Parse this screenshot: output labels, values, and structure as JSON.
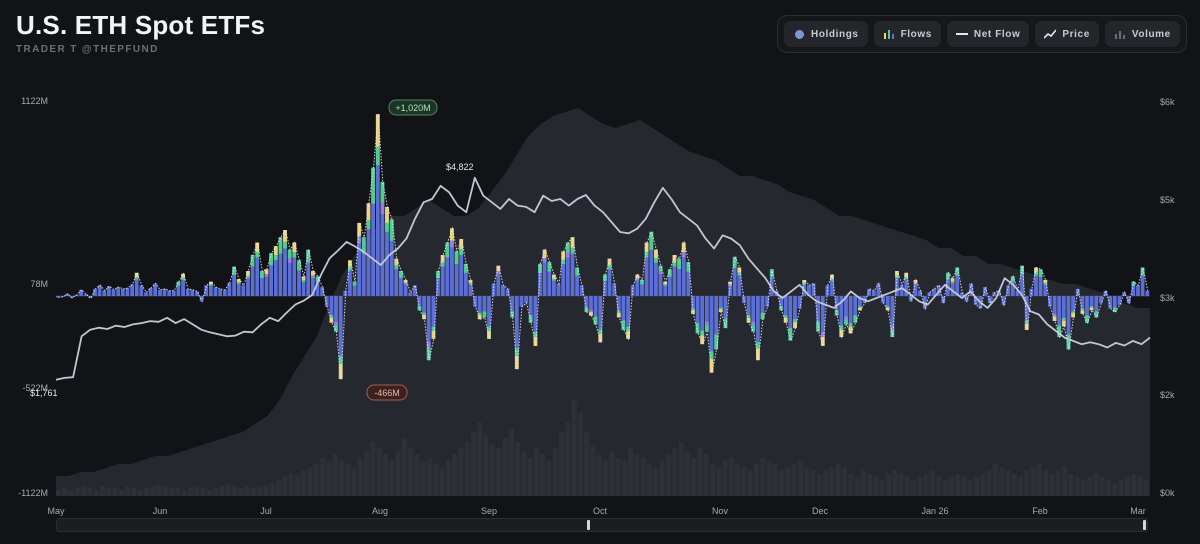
{
  "header": {
    "title": "U.S. ETH Spot ETFs",
    "subtitle": "TRADER T @THEPFUND"
  },
  "toolbar": {
    "buttons": [
      {
        "label": "Holdings",
        "icon": "holdings-dot-icon"
      },
      {
        "label": "Flows",
        "icon": "flows-bars-icon"
      },
      {
        "label": "Net Flow",
        "icon": "net-flow-line-icon"
      },
      {
        "label": "Price",
        "icon": "price-trend-icon"
      },
      {
        "label": "Volume",
        "icon": "volume-bars-icon"
      }
    ]
  },
  "colors": {
    "background": "#121316",
    "flow_primary": "#5b6fd6",
    "flow_green": "#4fcf8f",
    "flow_yellow": "#e8d27a",
    "flow_purple": "#9b7fe0",
    "net_flow_line": "#e9ecf5",
    "price_line": "#c2c5d4",
    "holdings_area": "#2a2d35",
    "volume_bar": "#2f3036"
  },
  "chart_data": {
    "type": "bar",
    "title": "U.S. ETH Spot ETFs",
    "left_axis": {
      "ticks": [
        "1122M",
        "78M",
        "-522M",
        "-1122M"
      ],
      "range": [
        -1122,
        1122
      ]
    },
    "right_axis": {
      "ticks": [
        "$6k",
        "$5k",
        "$3k",
        "$2k",
        "$0k"
      ],
      "range": [
        0,
        6000
      ]
    },
    "x_ticks": [
      "May",
      "Jun",
      "Jul",
      "Aug",
      "Sep",
      "Oct",
      "Nov",
      "Dec",
      "Jan 26",
      "Feb",
      "Mar"
    ],
    "annotations": {
      "max_flow": "+1,020M",
      "min_flow": "-466M",
      "price_peak": "$4,822",
      "start_price": "$1,761"
    },
    "series": [
      {
        "name": "Net Flow",
        "unit": "M USD",
        "values": [
          -8,
          -5,
          12,
          -10,
          6,
          35,
          10,
          -12,
          40,
          60,
          30,
          55,
          35,
          50,
          40,
          45,
          65,
          130,
          60,
          20,
          45,
          70,
          35,
          40,
          30,
          30,
          80,
          125,
          40,
          35,
          25,
          -30,
          60,
          80,
          50,
          40,
          35,
          75,
          165,
          95,
          60,
          140,
          230,
          300,
          140,
          150,
          240,
          280,
          330,
          370,
          260,
          300,
          200,
          110,
          260,
          140,
          110,
          50,
          -60,
          -150,
          -200,
          -466,
          30,
          200,
          80,
          410,
          330,
          520,
          720,
          1020,
          640,
          500,
          430,
          210,
          140,
          90,
          20,
          60,
          -80,
          -130,
          -360,
          -240,
          140,
          230,
          300,
          380,
          250,
          320,
          180,
          90,
          -60,
          -130,
          -120,
          -240,
          70,
          170,
          60,
          40,
          -120,
          -410,
          -60,
          -40,
          -150,
          -280,
          180,
          260,
          190,
          120,
          70,
          250,
          300,
          330,
          160,
          60,
          -90,
          -110,
          -160,
          -260,
          120,
          210,
          70,
          -120,
          -190,
          -240,
          60,
          120,
          90,
          300,
          360,
          260,
          170,
          80,
          150,
          230,
          210,
          300,
          190,
          -100,
          -210,
          -270,
          -200,
          -430,
          -300,
          -90,
          -180,
          80,
          220,
          160,
          -40,
          -150,
          -200,
          -360,
          -130,
          -60,
          150,
          30,
          -80,
          -150,
          -250,
          -180,
          -70,
          90,
          60,
          70,
          -200,
          -280,
          60,
          120,
          -110,
          -230,
          -160,
          -210,
          -150,
          -80,
          -40,
          40,
          30,
          70,
          -40,
          -80,
          -230,
          140,
          60,
          130,
          -30,
          90,
          30,
          -70,
          20,
          40,
          60,
          -40,
          130,
          100,
          160,
          20,
          -30,
          70,
          -50,
          -70,
          50,
          -40,
          20,
          30,
          -50,
          60,
          110,
          30,
          170,
          -190,
          40,
          160,
          150,
          90,
          -60,
          -140,
          -230,
          -170,
          -300,
          -120,
          40,
          -100,
          -150,
          -80,
          -120,
          -40,
          30,
          -70,
          -90,
          -50,
          20,
          -40,
          80,
          60,
          160,
          30
        ]
      },
      {
        "name": "Price",
        "unit": "USD",
        "values": [
          1761,
          1790,
          1800,
          2420,
          2520,
          2550,
          2530,
          2580,
          2560,
          2600,
          2620,
          2650,
          2640,
          2700,
          2620,
          2680,
          2600,
          2520,
          2480,
          2450,
          2420,
          2430,
          2490,
          2480,
          2600,
          2700,
          2650,
          2780,
          2900,
          2960,
          3050,
          3350,
          3600,
          3720,
          3850,
          3780,
          3700,
          3600,
          3500,
          3650,
          3750,
          3900,
          4200,
          4450,
          4500,
          4700,
          4600,
          4400,
          4300,
          4822,
          4550,
          4450,
          4350,
          4500,
          4400,
          4380,
          4300,
          4550,
          4470,
          4500,
          4400,
          4500,
          4560,
          4400,
          4300,
          4150,
          4000,
          3980,
          4050,
          4200,
          4450,
          4670,
          4500,
          4300,
          4200,
          4100,
          3900,
          3750,
          3950,
          3900,
          3800,
          3600,
          3450,
          3300,
          3100,
          3000,
          3100,
          3200,
          3050,
          2950,
          2900,
          2850,
          2950,
          3100,
          3000,
          2950,
          3000,
          3050,
          3100,
          3150,
          3050,
          2950,
          2900,
          3050,
          3200,
          3100,
          3000,
          3100,
          2950,
          2850,
          3000,
          3300,
          3200,
          3050,
          2800,
          2750,
          2600,
          2500,
          2400,
          2350,
          2300,
          2330,
          2300,
          2250,
          2320,
          2280,
          2350,
          2300,
          2400
        ]
      },
      {
        "name": "Holdings",
        "unit": "relative",
        "values": [
          0.05,
          0.05,
          0.06,
          0.06,
          0.07,
          0.08,
          0.08,
          0.09,
          0.1,
          0.1,
          0.11,
          0.12,
          0.13,
          0.14,
          0.15,
          0.16,
          0.18,
          0.2,
          0.24,
          0.3,
          0.35,
          0.4,
          0.48,
          0.55,
          0.6,
          0.64,
          0.68,
          0.7,
          0.7,
          0.72,
          0.74,
          0.72,
          0.7,
          0.7,
          0.72,
          0.76,
          0.8,
          0.85,
          0.9,
          0.93,
          0.95,
          0.96,
          0.97,
          0.95,
          0.93,
          0.92,
          0.93,
          0.94,
          0.92,
          0.9,
          0.88,
          0.86,
          0.85,
          0.84,
          0.82,
          0.8,
          0.8,
          0.79,
          0.78,
          0.76,
          0.75,
          0.74,
          0.72,
          0.7,
          0.7,
          0.69,
          0.68,
          0.67,
          0.66,
          0.65,
          0.64,
          0.62,
          0.62,
          0.6,
          0.6,
          0.58,
          0.58,
          0.57,
          0.56,
          0.55,
          0.54,
          0.53,
          0.53,
          0.52,
          0.51,
          0.5,
          0.48,
          0.47,
          0.47
        ]
      },
      {
        "name": "Volume",
        "unit": "relative",
        "values": [
          0.04,
          0.05,
          0.04,
          0.05,
          0.06,
          0.05,
          0.04,
          0.06,
          0.05,
          0.05,
          0.04,
          0.06,
          0.05,
          0.04,
          0.05,
          0.06,
          0.07,
          0.06,
          0.05,
          0.05,
          0.04,
          0.05,
          0.06,
          0.05,
          0.04,
          0.05,
          0.06,
          0.07,
          0.06,
          0.05,
          0.06,
          0.05,
          0.06,
          0.07,
          0.08,
          0.1,
          0.12,
          0.14,
          0.13,
          0.16,
          0.18,
          0.2,
          0.24,
          0.22,
          0.26,
          0.22,
          0.2,
          0.18,
          0.24,
          0.28,
          0.34,
          0.3,
          0.26,
          0.22,
          0.28,
          0.36,
          0.3,
          0.26,
          0.22,
          0.24,
          0.2,
          0.18,
          0.22,
          0.26,
          0.3,
          0.34,
          0.4,
          0.46,
          0.38,
          0.32,
          0.3,
          0.36,
          0.42,
          0.34,
          0.28,
          0.24,
          0.3,
          0.26,
          0.22,
          0.3,
          0.4,
          0.46,
          0.6,
          0.52,
          0.4,
          0.32,
          0.26,
          0.22,
          0.28,
          0.24,
          0.22,
          0.3,
          0.26,
          0.24,
          0.2,
          0.18,
          0.22,
          0.26,
          0.3,
          0.34,
          0.28,
          0.24,
          0.3,
          0.26,
          0.2,
          0.18,
          0.22,
          0.24,
          0.2,
          0.18,
          0.16,
          0.2,
          0.24,
          0.22,
          0.2,
          0.16,
          0.18,
          0.2,
          0.22,
          0.18,
          0.16,
          0.14,
          0.16,
          0.18,
          0.2,
          0.18,
          0.14,
          0.12,
          0.16,
          0.14,
          0.12,
          0.1,
          0.14,
          0.16,
          0.14,
          0.12,
          0.1,
          0.12,
          0.14,
          0.16,
          0.12,
          0.1,
          0.12,
          0.14,
          0.12,
          0.1,
          0.12,
          0.14,
          0.16,
          0.2,
          0.18,
          0.16,
          0.14,
          0.12,
          0.16,
          0.18,
          0.2,
          0.16,
          0.14,
          0.16,
          0.18,
          0.14,
          0.12,
          0.1,
          0.12,
          0.14,
          0.12,
          0.1,
          0.08,
          0.1,
          0.12,
          0.14,
          0.12,
          0.1
        ]
      }
    ]
  }
}
